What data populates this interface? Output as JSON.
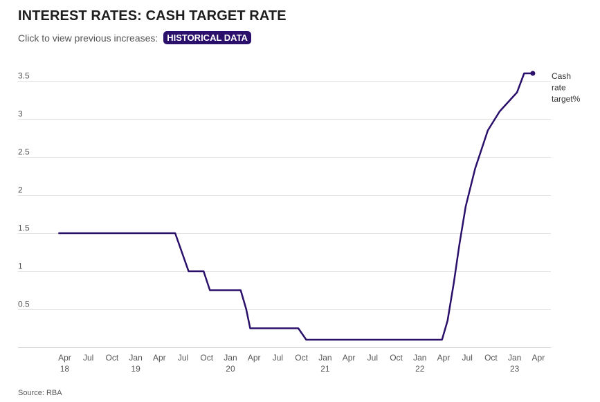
{
  "header": {
    "title": "INTEREST RATES: CASH TARGET RATE",
    "subtitle": "Click to view previous increases:",
    "button_label": "HISTORICAL DATA"
  },
  "footer": {
    "source": "Source: RBA"
  },
  "colors": {
    "line": "#2a0f6b",
    "grid": "#e4e4e4",
    "button_bg": "#2a0f6b"
  },
  "chart_data": {
    "type": "line",
    "title": "INTEREST RATES: CASH TARGET RATE",
    "xlabel": "",
    "ylabel": "",
    "ylim": [
      0,
      3.6
    ],
    "yticks": [
      {
        "value": 0.5,
        "label": "0.5"
      },
      {
        "value": 1,
        "label": "1"
      },
      {
        "value": 1.5,
        "label": "1.5"
      },
      {
        "value": 2,
        "label": "2"
      },
      {
        "value": 2.5,
        "label": "2.5"
      },
      {
        "value": 3,
        "label": "3"
      },
      {
        "value": 3.5,
        "label": "3.5"
      }
    ],
    "xlim": [
      2,
      64.5
    ],
    "xticks": [
      {
        "m": 3,
        "label": "Apr",
        "year": "18"
      },
      {
        "m": 6,
        "label": "Jul"
      },
      {
        "m": 9,
        "label": "Oct"
      },
      {
        "m": 12,
        "label": "Jan",
        "year": "19"
      },
      {
        "m": 15,
        "label": "Apr"
      },
      {
        "m": 18,
        "label": "Jul"
      },
      {
        "m": 21,
        "label": "Oct"
      },
      {
        "m": 24,
        "label": "Jan",
        "year": "20"
      },
      {
        "m": 27,
        "label": "Apr"
      },
      {
        "m": 30,
        "label": "Jul"
      },
      {
        "m": 33,
        "label": "Oct"
      },
      {
        "m": 36,
        "label": "Jan",
        "year": "21"
      },
      {
        "m": 39,
        "label": "Apr"
      },
      {
        "m": 42,
        "label": "Jul"
      },
      {
        "m": 45,
        "label": "Oct"
      },
      {
        "m": 48,
        "label": "Jan",
        "year": "22"
      },
      {
        "m": 51,
        "label": "Apr"
      },
      {
        "m": 54,
        "label": "Jul"
      },
      {
        "m": 57,
        "label": "Oct"
      },
      {
        "m": 60,
        "label": "Jan",
        "year": "23"
      },
      {
        "m": 63,
        "label": "Apr"
      }
    ],
    "series": [
      {
        "name": "Cash rate target%",
        "label_lines": [
          "Cash",
          "rate",
          "target%"
        ],
        "points": [
          [
            2.3,
            1.5
          ],
          [
            17.0,
            1.5
          ],
          [
            18.7,
            1.0
          ],
          [
            20.6,
            1.0
          ],
          [
            21.4,
            0.75
          ],
          [
            25.3,
            0.75
          ],
          [
            26.0,
            0.5
          ],
          [
            26.5,
            0.25
          ],
          [
            32.6,
            0.25
          ],
          [
            33.6,
            0.1
          ],
          [
            50.8,
            0.1
          ],
          [
            51.5,
            0.35
          ],
          [
            52.3,
            0.85
          ],
          [
            53.0,
            1.35
          ],
          [
            53.8,
            1.85
          ],
          [
            55.0,
            2.35
          ],
          [
            56.6,
            2.85
          ],
          [
            58.1,
            3.1
          ],
          [
            60.3,
            3.35
          ],
          [
            61.2,
            3.6
          ],
          [
            62.3,
            3.6
          ]
        ]
      }
    ],
    "grid": true,
    "legend": "end-label"
  }
}
